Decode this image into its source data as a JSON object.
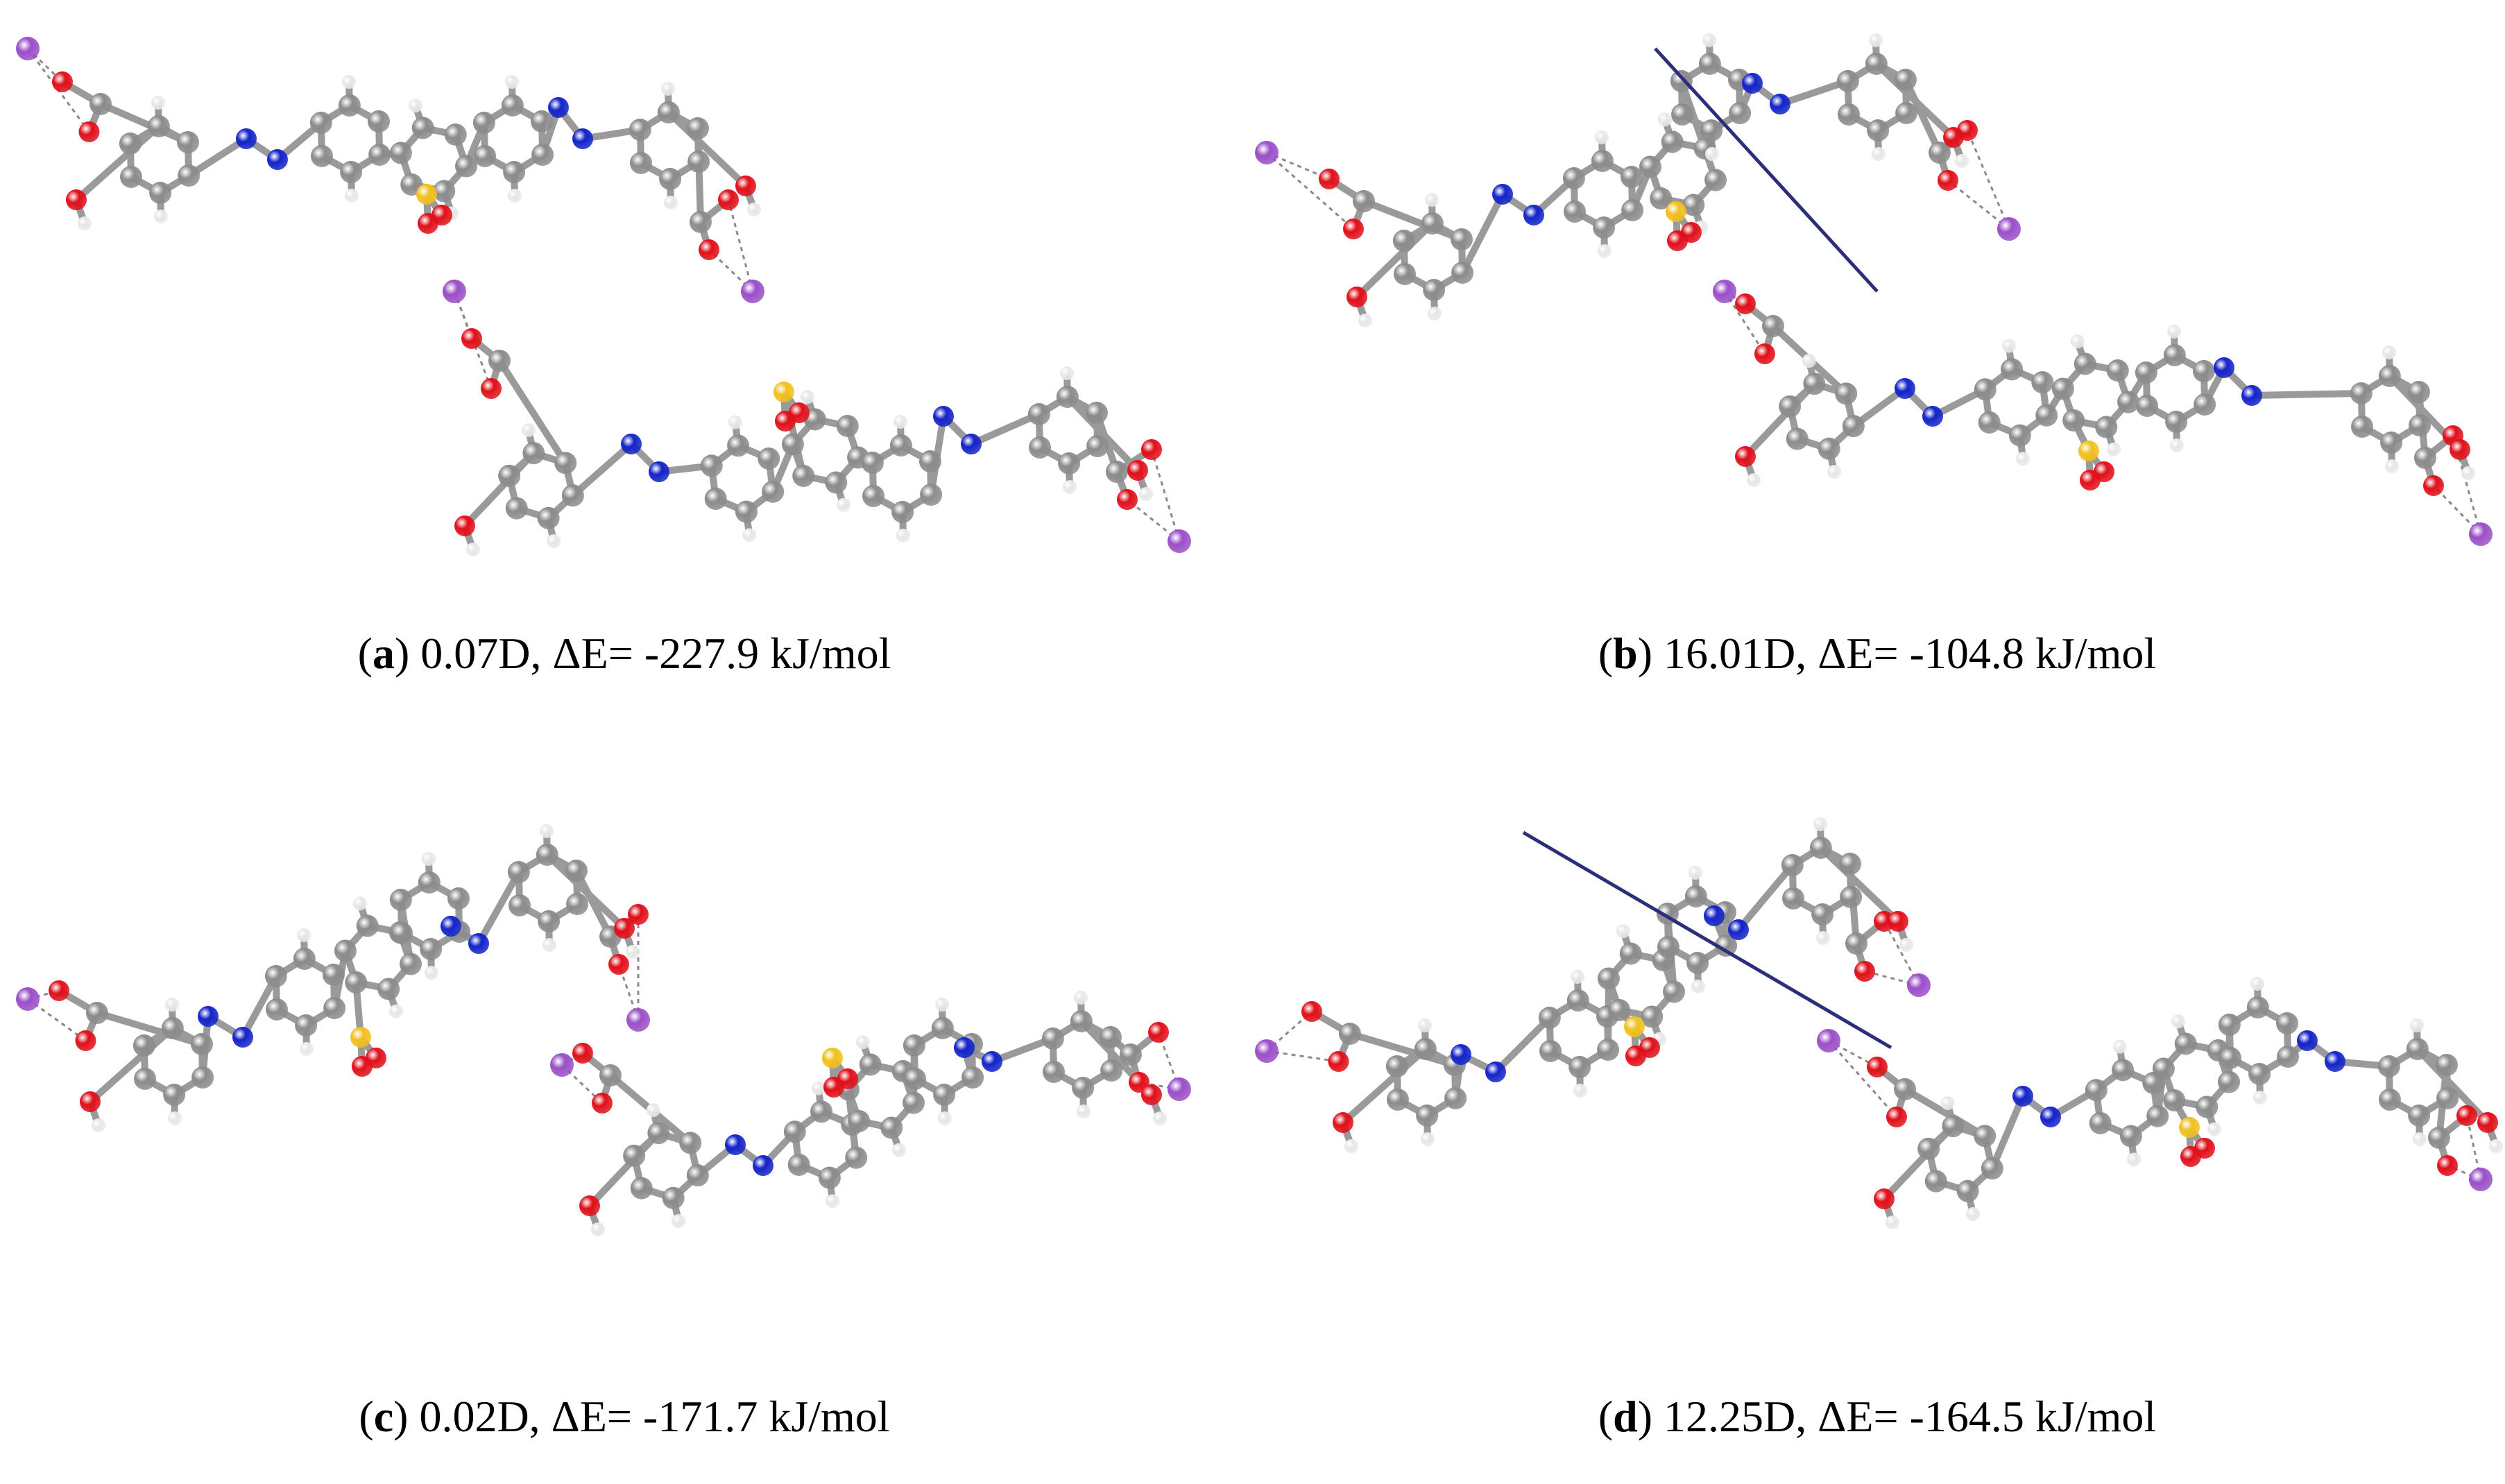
{
  "colors": {
    "carbon": "#8c8c8c",
    "hydrogen": "#e8e8e8",
    "oxygen": "#e0101a",
    "nitrogen": "#1424c8",
    "sulfur": "#f2c01e",
    "metal": "#9a4fc8",
    "dipole_vector": "#2b2f7a"
  },
  "panels": [
    {
      "id": "a",
      "label": "a",
      "dipole": "0.07D",
      "energy": "ΔE= -227.9 kJ/mol",
      "shows_dipole_vector": false
    },
    {
      "id": "b",
      "label": "b",
      "dipole": "16.01D",
      "energy": "ΔE= -104.8 kJ/mol",
      "shows_dipole_vector": true
    },
    {
      "id": "c",
      "label": "c",
      "dipole": "0.02D",
      "energy": "ΔE= -171.7 kJ/mol",
      "shows_dipole_vector": false
    },
    {
      "id": "d",
      "label": "d",
      "dipole": "12.25D",
      "energy": "ΔE= -164.5 kJ/mol",
      "shows_dipole_vector": true
    }
  ]
}
